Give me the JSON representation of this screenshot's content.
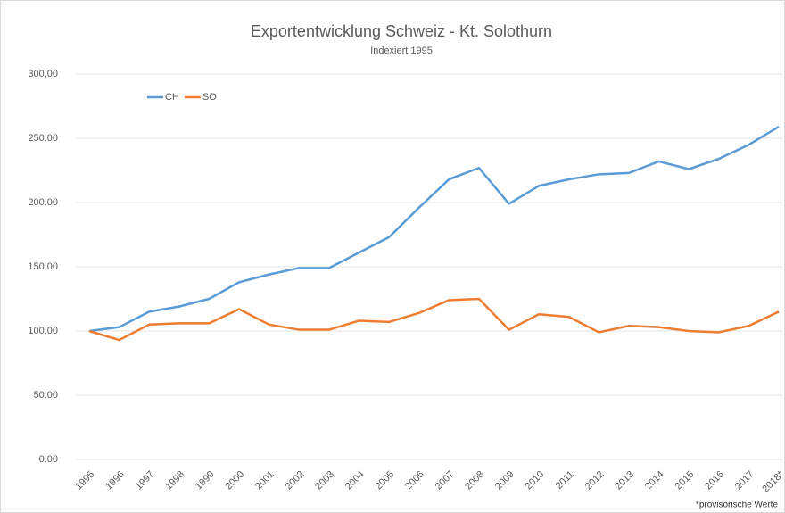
{
  "chart_data": {
    "type": "line",
    "title": "Exportentwicklung Schweiz - Kt. Solothurn",
    "subtitle": "Indexiert 1995",
    "footnote": "*provisorische Werte",
    "categories": [
      "1995",
      "1996",
      "1997",
      "1998",
      "1999",
      "2000",
      "2001",
      "2002",
      "2003",
      "2004",
      "2005",
      "2006",
      "2007",
      "2008",
      "2009",
      "2010",
      "2011",
      "2012",
      "2013",
      "2014",
      "2015",
      "2016",
      "2017",
      "2018*"
    ],
    "series": [
      {
        "name": "CH",
        "color": "#5b9bd5",
        "values": [
          100,
          103,
          115,
          119,
          125,
          138,
          144,
          149,
          149,
          161,
          173,
          196,
          218,
          227,
          199,
          213,
          218,
          222,
          223,
          232,
          226,
          234,
          245,
          259
        ]
      },
      {
        "name": "SO",
        "color": "#ed7d31",
        "values": [
          100,
          93,
          105,
          106,
          106,
          117,
          105,
          101,
          101,
          108,
          107,
          114,
          124,
          125,
          101,
          113,
          111,
          99,
          104,
          103,
          100,
          99,
          104,
          115
        ]
      }
    ],
    "ylim": [
      0,
      300
    ],
    "yticks": [
      {
        "value": 0,
        "label": "0.00"
      },
      {
        "value": 50,
        "label": "50.00"
      },
      {
        "value": 100,
        "label": "100.00"
      },
      {
        "value": 150,
        "label": "150.00"
      },
      {
        "value": 200,
        "label": "200.00"
      },
      {
        "value": 250,
        "label": "250.00"
      },
      {
        "value": 300,
        "label": "300,00"
      }
    ],
    "grid": true,
    "legend": "top-left"
  }
}
